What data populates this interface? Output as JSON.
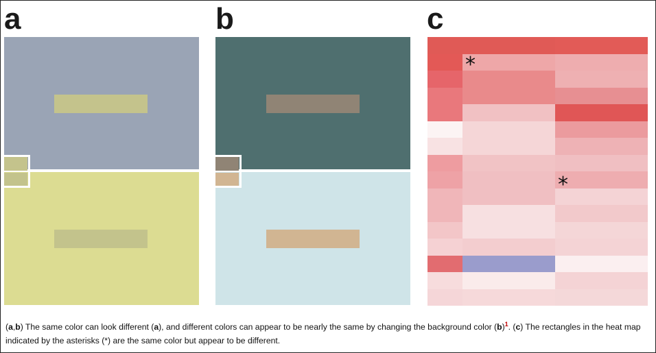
{
  "panels": {
    "a": {
      "label": "a",
      "top_color": "#9aa4b5",
      "bottom_color": "#dcdc92",
      "bar_color_top": "#c4c38c",
      "bar_color_bottom": "#c3c38c",
      "swatch_top": "#c4c38c",
      "swatch_bottom": "#c3c38c"
    },
    "b": {
      "label": "b",
      "top_color": "#4f6f6f",
      "bottom_color": "#cfe4e8",
      "bar_color_top": "#908475",
      "bar_color_bottom": "#d1b592",
      "swatch_top": "#908475",
      "swatch_bottom": "#d1b592"
    },
    "c": {
      "label": "c",
      "asterisk": "*"
    }
  },
  "heatmap": {
    "columns": 3,
    "column_split": [
      0.16,
      0.58,
      1.0
    ],
    "rows": [
      [
        "#e05a56",
        "#e05a56",
        "#e25b57"
      ],
      [
        "#e35956",
        "#eea7a8",
        "#eeadaf"
      ],
      [
        "#e6656a",
        "#e98a8b",
        "#eeb0b2"
      ],
      [
        "#e9787c",
        "#e98a8b",
        "#e78f92"
      ],
      [
        "#e9787c",
        "#f1c1c3",
        "#e05656"
      ],
      [
        "#fcf4f4",
        "#f5d6d7",
        "#eb9b9e"
      ],
      [
        "#f8e2e3",
        "#f5d6d7",
        "#eeb2b5"
      ],
      [
        "#ee9ca0",
        "#f1c3c5",
        "#f0bfc2"
      ],
      [
        "#eea2a6",
        "#f0bfc2",
        "#eeadb0"
      ],
      [
        "#f0b6b9",
        "#f0bfc2",
        "#f4d3d5"
      ],
      [
        "#f0b6b9",
        "#f7e0e1",
        "#f2c9cb"
      ],
      [
        "#f3c6c8",
        "#f7e0e1",
        "#f4d6d7"
      ],
      [
        "#f5d1d3",
        "#f3cdcf",
        "#f4d3d5"
      ],
      [
        "#e26c70",
        "#9a9ccc",
        "#fbeff0"
      ],
      [
        "#f7dcdd",
        "#faebeb",
        "#f4d3d5"
      ],
      [
        "#f5d6d8",
        "#f6d9da",
        "#f4d8d9"
      ]
    ]
  },
  "caption": {
    "p1": "(",
    "b1": "a",
    "p2": ",",
    "b2": "b",
    "p3": ") The same color can look different (",
    "b3": "a",
    "p4": "), and different colors can appear to be nearly the same by changing the background color (",
    "b4": "b",
    "p5": ")",
    "ref": "1",
    "p6": ". (",
    "b5": "c",
    "p7": ") The rectangles in the heat map indicated by the asterisks (*) are the same color but appear to be different."
  }
}
